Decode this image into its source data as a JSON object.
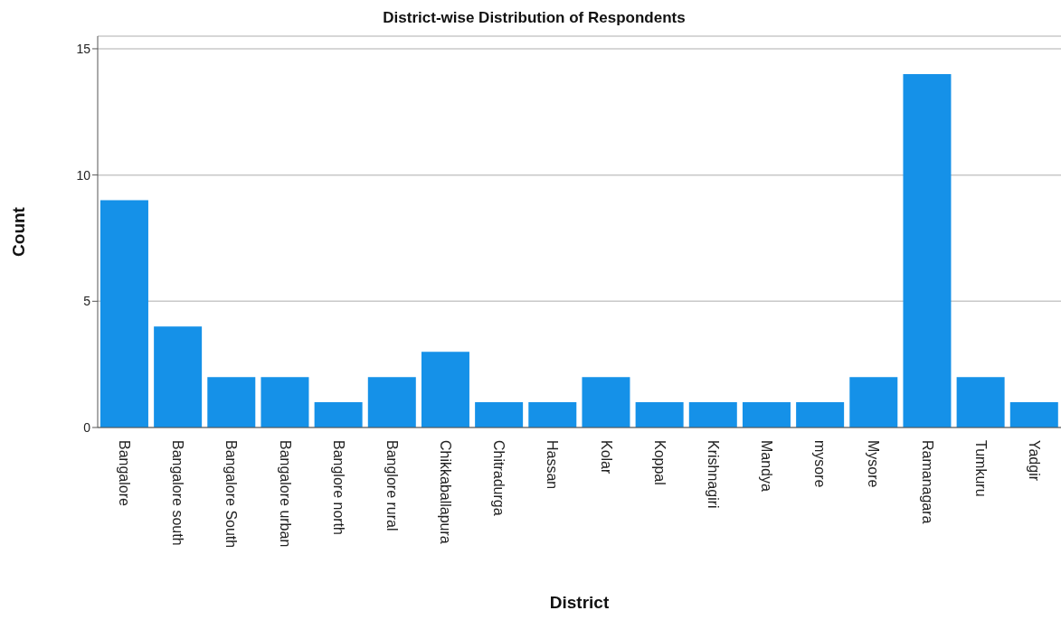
{
  "chart_data": {
    "type": "bar",
    "title": "District-wise Distribution of Respondents",
    "xlabel": "District",
    "ylabel": "Count",
    "categories": [
      "Bangalore",
      "Bangalore south",
      "Bangalore South",
      "Bangalore urban",
      "Banglore north",
      "Banglore rural",
      "Chikkaballapura",
      "Chitradurga",
      "Hassan",
      "Kolar",
      "Koppal",
      "Krishnagiri",
      "Mandya",
      "mysore",
      "Mysore",
      "Ramanagara",
      "Tumkuru",
      "Yadgir"
    ],
    "values": [
      9,
      4,
      2,
      2,
      1,
      2,
      3,
      1,
      1,
      2,
      1,
      1,
      1,
      1,
      2,
      14,
      2,
      1
    ],
    "color": "#1591e8",
    "ylim": [
      0,
      15.5
    ],
    "yticks": [
      0,
      5,
      10,
      15
    ],
    "grid": "y"
  }
}
